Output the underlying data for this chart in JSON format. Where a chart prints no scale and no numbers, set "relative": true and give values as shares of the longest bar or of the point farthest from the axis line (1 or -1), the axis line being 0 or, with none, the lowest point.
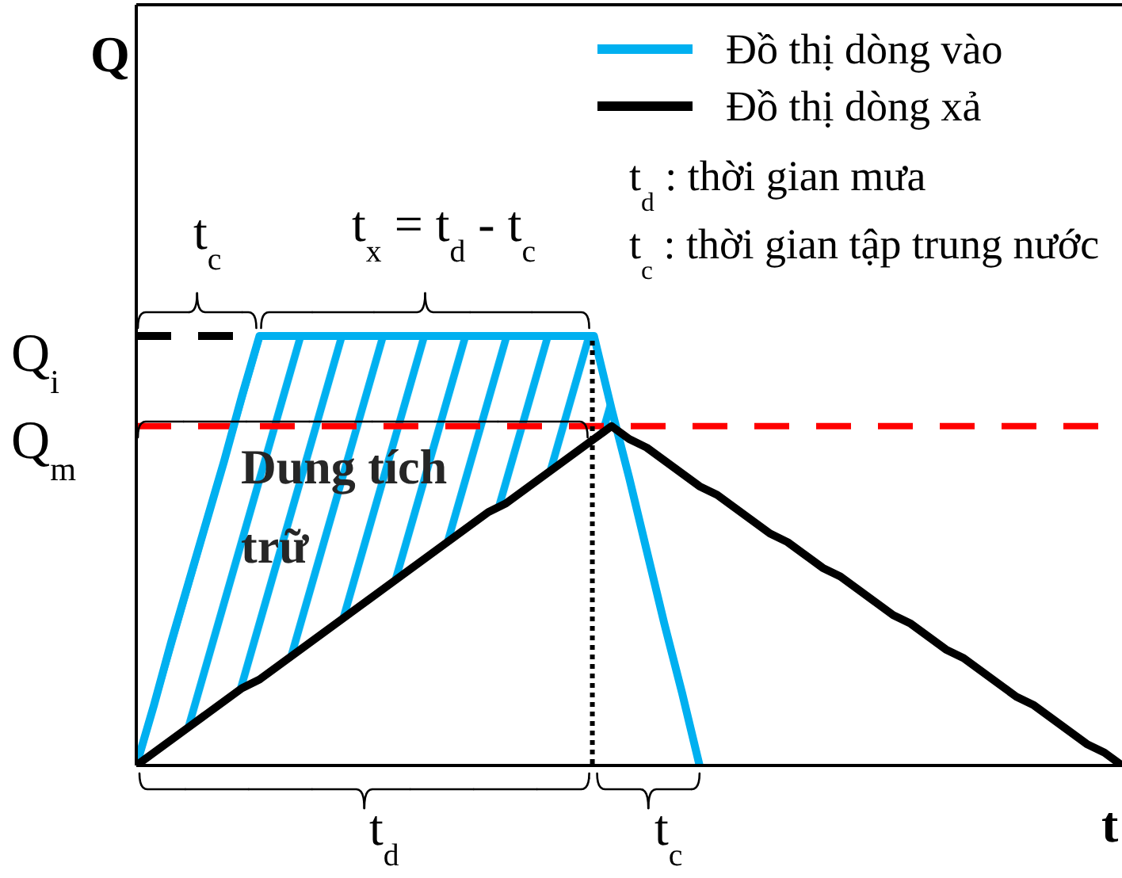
{
  "chart_data": {
    "type": "line",
    "relative": true,
    "xlabel": "t",
    "categories": [
      null,
      null,
      null,
      null,
      null,
      null,
      null,
      null,
      null,
      null,
      null,
      null,
      null,
      null,
      null,
      null,
      null,
      null,
      null,
      null,
      null,
      null,
      null,
      null,
      null,
      null,
      null,
      null,
      null,
      null,
      null,
      null,
      null,
      null,
      null,
      null,
      null,
      null,
      null,
      null,
      null,
      null,
      null,
      null,
      null,
      null,
      null,
      null,
      null,
      null,
      null,
      null,
      null,
      null,
      null,
      null,
      null
    ],
    "series": [
      {
        "name": "Đồ thị dòng vào",
        "color": "#00b0f0",
        "values": [
          0,
          0.14,
          0.29,
          0.43,
          0.57,
          0.71,
          0.86,
          1,
          1,
          1,
          1,
          1,
          1,
          1,
          1,
          1,
          1,
          1,
          1,
          1,
          1,
          1,
          1,
          1,
          1,
          1,
          1,
          0.83,
          0.67,
          0.5,
          0.33,
          0.17,
          0,
          null,
          null,
          null,
          null,
          null,
          null,
          null,
          null,
          null,
          null,
          null,
          null,
          null,
          null,
          null,
          null,
          null,
          null,
          null,
          null,
          null,
          null,
          null,
          null
        ]
      },
      {
        "name": "Đồ thị dòng xả",
        "color": "#000000",
        "values": [
          0,
          0.03,
          0.06,
          0.09,
          0.12,
          0.15,
          0.18,
          0.2,
          0.23,
          0.26,
          0.29,
          0.32,
          0.35,
          0.38,
          0.41,
          0.44,
          0.47,
          0.5,
          0.53,
          0.56,
          0.59,
          0.61,
          0.64,
          0.67,
          0.7,
          0.73,
          0.76,
          0.79,
          0.76,
          0.74,
          0.71,
          0.68,
          0.65,
          0.63,
          0.6,
          0.57,
          0.54,
          0.52,
          0.49,
          0.46,
          0.44,
          0.41,
          0.38,
          0.35,
          0.33,
          0.3,
          0.27,
          0.25,
          0.22,
          0.19,
          0.16,
          0.14,
          0.11,
          0.08,
          0.05,
          0.03,
          0
        ]
      },
      {
        "color": "#000000",
        "line_style": "dashed",
        "values": [
          1,
          1,
          1,
          1,
          1,
          1,
          1,
          null,
          null,
          null,
          null,
          null,
          null,
          null,
          null,
          null,
          null,
          null,
          null,
          null,
          null,
          null,
          null,
          null,
          null,
          null,
          null,
          null,
          null,
          null,
          null,
          null,
          null,
          null,
          null,
          null,
          null,
          null,
          null,
          null,
          null,
          null,
          null,
          null,
          null,
          null,
          null,
          null,
          null,
          null,
          null,
          null,
          null,
          null,
          null,
          null,
          null
        ]
      }
    ],
    "ref_lines": [
      {
        "axis": "y",
        "value": 0.79,
        "label": "Q$_{m}$",
        "color": "#ff0000",
        "line_style": "dashed"
      }
    ],
    "annotations": [
      "Q",
      "t$_{c}$",
      "t$_{x}$ = t$_{d}$ - t$_{c}$",
      "t$_{d}$ : thời gian mưa",
      "t$_{c}$ : thời gian tập trung nước",
      "Q$_{i}$",
      "Dung tích trữ",
      "t$_{d}$",
      "t$_{c}$"
    ],
    "legend": "top right"
  }
}
